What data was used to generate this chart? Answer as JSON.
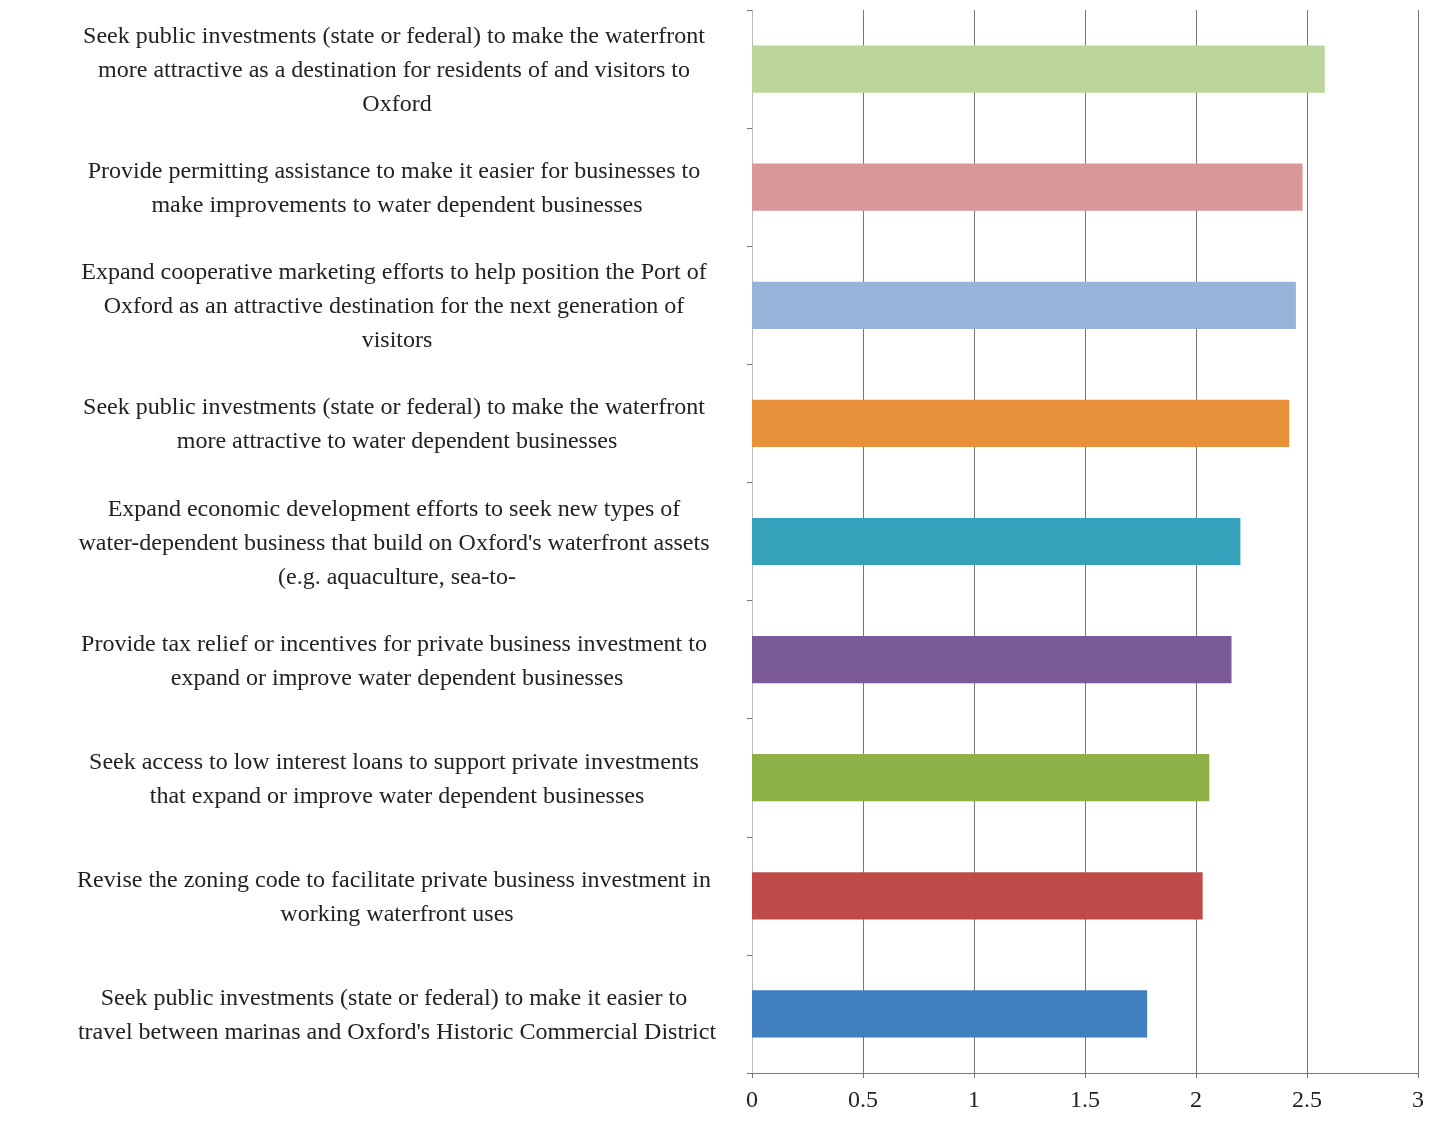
{
  "chart_data": {
    "type": "bar",
    "orientation": "horizontal",
    "categories": [
      "Seek public investments (state or federal) to make the waterfront more attractive as a destination for residents of and visitors to Oxford",
      "Provide permitting assistance to make it easier for businesses to make improvements to water dependent businesses",
      "Expand cooperative marketing efforts to help position the Port of Oxford as an attractive destination for the next generation of visitors",
      "Seek public investments (state or federal) to make the waterfront more attractive to water dependent businesses",
      "Expand economic development efforts to seek new types of water-dependent business that build on Oxford's waterfront assets (e.g. aquaculture, sea-to-",
      "Provide tax relief or incentives for private business investment to expand or improve water dependent businesses",
      "Seek access to low interest loans to support private investments that expand or improve water dependent businesses",
      "Revise the zoning code to facilitate private business investment in working waterfront uses",
      "Seek public investments (state or federal) to make it easier to travel between marinas and Oxford's Historic Commercial District"
    ],
    "values": [
      2.58,
      2.48,
      2.45,
      2.42,
      2.2,
      2.16,
      2.06,
      2.03,
      1.78
    ],
    "colors": [
      "#bcd59a",
      "#d9979a",
      "#97b3da",
      "#e8913a",
      "#34a2bb",
      "#7a5a99",
      "#8db047",
      "#bf4b48",
      "#3f7fbf"
    ],
    "xlim": [
      0,
      3
    ],
    "xticks": [
      0,
      0.5,
      1,
      1.5,
      2,
      2.5,
      3
    ],
    "grid": "x"
  }
}
